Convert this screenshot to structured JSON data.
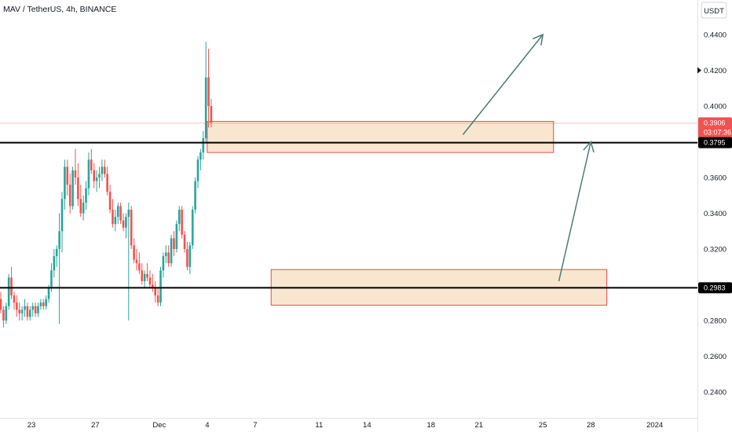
{
  "header": {
    "title": "MAV / TetherUS, 4h, BINANCE"
  },
  "chart_data": {
    "type": "candlestick",
    "symbol": "MAV / TetherUS",
    "interval": "4h",
    "exchange": "BINANCE",
    "currency": "USDT",
    "ylim": [
      0.228,
      0.456
    ],
    "yticks": [
      "0.2400",
      "0.2600",
      "0.2800",
      "0.3000",
      "0.3200",
      "0.3400",
      "0.3600",
      "0.3800",
      "0.4000",
      "0.4200",
      "0.4400"
    ],
    "xticks": [
      "23",
      "27",
      "Dec",
      "4",
      "7",
      "11",
      "14",
      "18",
      "21",
      "25",
      "28",
      "2024",
      "4"
    ],
    "x_dates": [
      "2023-11-23",
      "2023-11-27",
      "2023-12-01",
      "2023-12-04",
      "2023-12-07",
      "2023-12-11",
      "2023-12-14",
      "2023-12-18",
      "2023-12-21",
      "2023-12-25",
      "2023-12-28",
      "2024-01-01",
      "2024-01-04"
    ],
    "bars_per_day": 6,
    "grid": false,
    "candles": [
      [
        0.28,
        0.288,
        0.276,
        0.276
      ],
      [
        0.276,
        0.282,
        0.274,
        0.28
      ],
      [
        0.28,
        0.284,
        0.272,
        0.276
      ],
      [
        0.276,
        0.278,
        0.266,
        0.27
      ],
      [
        0.27,
        0.274,
        0.256,
        0.258
      ],
      [
        0.258,
        0.264,
        0.248,
        0.25
      ],
      [
        0.25,
        0.262,
        0.248,
        0.26
      ],
      [
        0.26,
        0.264,
        0.256,
        0.262
      ],
      [
        0.262,
        0.282,
        0.26,
        0.28
      ],
      [
        0.28,
        0.29,
        0.276,
        0.286
      ],
      [
        0.286,
        0.292,
        0.282,
        0.288
      ],
      [
        0.288,
        0.294,
        0.28,
        0.284
      ],
      [
        0.284,
        0.3,
        0.282,
        0.298
      ],
      [
        0.298,
        0.308,
        0.296,
        0.304
      ],
      [
        0.304,
        0.316,
        0.3,
        0.312
      ],
      [
        0.312,
        0.336,
        0.31,
        0.33
      ],
      [
        0.33,
        0.336,
        0.32,
        0.324
      ],
      [
        0.324,
        0.334,
        0.32,
        0.33
      ],
      [
        0.33,
        0.338,
        0.318,
        0.32
      ],
      [
        0.32,
        0.326,
        0.312,
        0.314
      ],
      [
        0.314,
        0.326,
        0.312,
        0.324
      ],
      [
        0.324,
        0.326,
        0.31,
        0.312
      ],
      [
        0.312,
        0.32,
        0.308,
        0.31
      ],
      [
        0.31,
        0.314,
        0.298,
        0.3
      ],
      [
        0.3,
        0.306,
        0.294,
        0.296
      ],
      [
        0.296,
        0.3,
        0.286,
        0.288
      ],
      [
        0.288,
        0.294,
        0.284,
        0.292
      ],
      [
        0.292,
        0.296,
        0.284,
        0.286
      ],
      [
        0.286,
        0.288,
        0.276,
        0.28
      ],
      [
        0.28,
        0.29,
        0.278,
        0.288
      ],
      [
        0.288,
        0.306,
        0.286,
        0.304
      ],
      [
        0.304,
        0.31,
        0.292,
        0.294
      ],
      [
        0.294,
        0.296,
        0.286,
        0.29
      ],
      [
        0.29,
        0.294,
        0.282,
        0.286
      ],
      [
        0.286,
        0.29,
        0.28,
        0.284
      ],
      [
        0.284,
        0.288,
        0.28,
        0.286
      ],
      [
        0.286,
        0.292,
        0.282,
        0.288
      ],
      [
        0.288,
        0.29,
        0.28,
        0.282
      ],
      [
        0.282,
        0.288,
        0.28,
        0.286
      ],
      [
        0.286,
        0.29,
        0.282,
        0.288
      ],
      [
        0.288,
        0.29,
        0.282,
        0.284
      ],
      [
        0.284,
        0.29,
        0.282,
        0.288
      ],
      [
        0.288,
        0.292,
        0.286,
        0.29
      ],
      [
        0.29,
        0.292,
        0.286,
        0.288
      ],
      [
        0.288,
        0.294,
        0.286,
        0.292
      ],
      [
        0.292,
        0.3,
        0.29,
        0.298
      ],
      [
        0.298,
        0.312,
        0.296,
        0.308
      ],
      [
        0.308,
        0.32,
        0.304,
        0.316
      ],
      [
        0.316,
        0.322,
        0.31,
        0.32
      ],
      [
        0.32,
        0.34,
        0.278,
        0.33
      ],
      [
        0.33,
        0.352,
        0.318,
        0.348
      ],
      [
        0.348,
        0.37,
        0.342,
        0.366
      ],
      [
        0.366,
        0.37,
        0.35,
        0.356
      ],
      [
        0.356,
        0.362,
        0.34,
        0.344
      ],
      [
        0.344,
        0.366,
        0.342,
        0.364
      ],
      [
        0.364,
        0.376,
        0.356,
        0.36
      ],
      [
        0.36,
        0.368,
        0.344,
        0.348
      ],
      [
        0.348,
        0.356,
        0.338,
        0.34
      ],
      [
        0.34,
        0.35,
        0.336,
        0.346
      ],
      [
        0.346,
        0.358,
        0.342,
        0.354
      ],
      [
        0.354,
        0.374,
        0.35,
        0.37
      ],
      [
        0.37,
        0.376,
        0.362,
        0.364
      ],
      [
        0.364,
        0.368,
        0.354,
        0.358
      ],
      [
        0.358,
        0.364,
        0.352,
        0.36
      ],
      [
        0.36,
        0.366,
        0.354,
        0.362
      ],
      [
        0.362,
        0.37,
        0.358,
        0.366
      ],
      [
        0.366,
        0.37,
        0.36,
        0.362
      ],
      [
        0.362,
        0.366,
        0.35,
        0.352
      ],
      [
        0.352,
        0.356,
        0.34,
        0.342
      ],
      [
        0.342,
        0.348,
        0.332,
        0.334
      ],
      [
        0.334,
        0.342,
        0.33,
        0.338
      ],
      [
        0.338,
        0.346,
        0.334,
        0.344
      ],
      [
        0.344,
        0.346,
        0.334,
        0.336
      ],
      [
        0.336,
        0.34,
        0.33,
        0.332
      ],
      [
        0.332,
        0.34,
        0.326,
        0.338
      ],
      [
        0.338,
        0.346,
        0.28,
        0.342
      ],
      [
        0.342,
        0.344,
        0.32,
        0.322
      ],
      [
        0.322,
        0.326,
        0.312,
        0.314
      ],
      [
        0.314,
        0.32,
        0.308,
        0.312
      ],
      [
        0.312,
        0.318,
        0.306,
        0.308
      ],
      [
        0.308,
        0.312,
        0.3,
        0.302
      ],
      [
        0.302,
        0.308,
        0.298,
        0.306
      ],
      [
        0.306,
        0.312,
        0.302,
        0.304
      ],
      [
        0.304,
        0.308,
        0.298,
        0.3
      ],
      [
        0.3,
        0.306,
        0.296,
        0.298
      ],
      [
        0.298,
        0.302,
        0.29,
        0.294
      ],
      [
        0.294,
        0.298,
        0.288,
        0.29
      ],
      [
        0.29,
        0.31,
        0.288,
        0.308
      ],
      [
        0.308,
        0.318,
        0.304,
        0.316
      ],
      [
        0.316,
        0.322,
        0.312,
        0.318
      ],
      [
        0.318,
        0.322,
        0.31,
        0.312
      ],
      [
        0.312,
        0.328,
        0.31,
        0.326
      ],
      [
        0.326,
        0.33,
        0.316,
        0.32
      ],
      [
        0.32,
        0.336,
        0.318,
        0.334
      ],
      [
        0.334,
        0.344,
        0.33,
        0.342
      ],
      [
        0.342,
        0.344,
        0.326,
        0.328
      ],
      [
        0.328,
        0.33,
        0.318,
        0.32
      ],
      [
        0.32,
        0.324,
        0.308,
        0.31
      ],
      [
        0.31,
        0.324,
        0.306,
        0.322
      ],
      [
        0.322,
        0.344,
        0.32,
        0.342
      ],
      [
        0.342,
        0.36,
        0.34,
        0.358
      ],
      [
        0.358,
        0.372,
        0.354,
        0.37
      ],
      [
        0.37,
        0.376,
        0.364,
        0.374
      ],
      [
        0.374,
        0.386,
        0.37,
        0.382
      ],
      [
        0.382,
        0.436,
        0.38,
        0.416
      ],
      [
        0.416,
        0.432,
        0.388,
        0.4
      ],
      [
        0.4,
        0.404,
        0.388,
        0.3906
      ]
    ]
  },
  "price_axis": {
    "currency_label": "USDT",
    "current_price": "0.3906",
    "countdown": "03:07:36",
    "level_high_label": "0.3795",
    "level_low_label": "0.2983"
  },
  "drawings": {
    "horizontal_lines": [
      0.3795,
      0.2983
    ],
    "zones": [
      {
        "top": 0.3914,
        "bottom": 0.374,
        "start": "2023-12-04",
        "end": "2023-12-25T16:00"
      },
      {
        "top": 0.3085,
        "bottom": 0.2885,
        "start": "2023-12-08",
        "end": "2023-12-29"
      }
    ],
    "arrows": [
      {
        "from": [
          "2023-12-20",
          0.384
        ],
        "to": [
          "2023-12-25",
          0.44
        ]
      },
      {
        "from": [
          "2023-12-26",
          0.302
        ],
        "to": [
          "2023-12-28",
          0.38
        ]
      }
    ]
  },
  "colors": {
    "up": "#26a69a",
    "down": "#ef5350",
    "zone_fill": "#f8e2c8",
    "zone_border": "#e84a4a",
    "level_line": "#000000",
    "arrow": "#4e7a74",
    "price_tag": "#ef5350",
    "axis_text": "#131722",
    "axis_line": "#e0e3eb"
  }
}
